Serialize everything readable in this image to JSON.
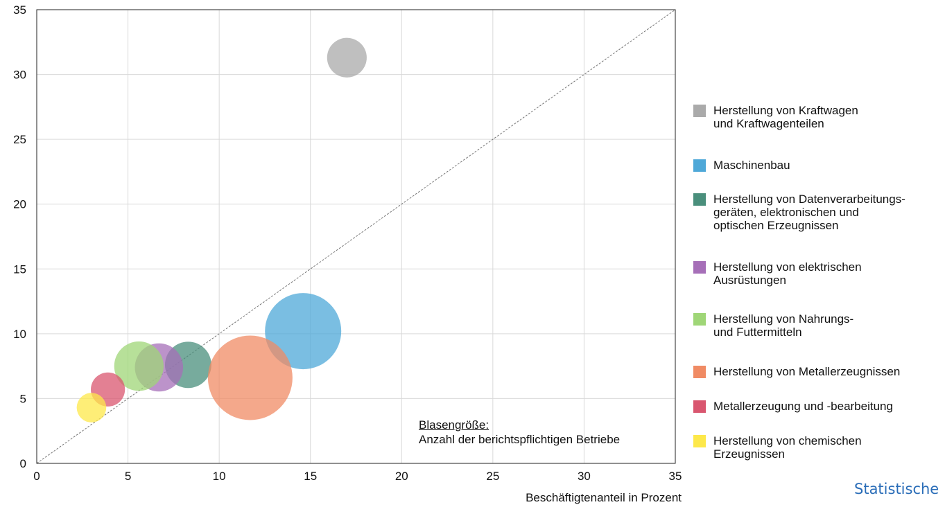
{
  "chart_data": {
    "type": "scatter",
    "subtype": "bubble",
    "xlabel": "Beschäftigtenanteil in Prozent",
    "ylabel": "",
    "xlim": [
      0,
      35
    ],
    "ylim": [
      0,
      35
    ],
    "xticks": [
      "0",
      "5",
      "10",
      "15",
      "20",
      "25",
      "30",
      "35"
    ],
    "yticks": [
      "0",
      "5",
      "10",
      "15",
      "20",
      "25",
      "30",
      "35"
    ],
    "grid": true,
    "diagonal_reference_line": true,
    "legend_position": "right",
    "size_note_title": "Blasengröße:",
    "size_note_text": "Anzahl der berichtspflichtigen Betriebe",
    "series": [
      {
        "name": "Herstellung von Kraftwagen\nund Kraftwagenteilen",
        "color": "#aaaaaa",
        "x": 17.0,
        "y": 31.3,
        "size": 0.27
      },
      {
        "name": "Maschinenbau",
        "color": "#4ea8d8",
        "x": 14.6,
        "y": 10.2,
        "size": 1.0
      },
      {
        "name": "Herstellung von Datenverarbeitungs-\ngeräten, elektronischen und\noptischen Erzeugnissen",
        "color": "#4a8f7c",
        "x": 8.3,
        "y": 7.6,
        "size": 0.37
      },
      {
        "name": "Herstellung von elektrischen\nAusrüstungen",
        "color": "#a66fb8",
        "x": 6.7,
        "y": 7.4,
        "size": 0.4
      },
      {
        "name": "Herstellung von Nahrungs-\nund Futtermitteln",
        "color": "#9fd677",
        "x": 5.6,
        "y": 7.5,
        "size": 0.42
      },
      {
        "name": "Herstellung von Metallerzeugnissen",
        "color": "#f08b64",
        "x": 11.7,
        "y": 6.6,
        "size": 1.23
      },
      {
        "name": "Metallerzeugung und -bearbeitung",
        "color": "#d9566f",
        "x": 3.9,
        "y": 5.7,
        "size": 0.2
      },
      {
        "name": "Herstellung von chemischen\nErzeugnissen",
        "color": "#fde84a",
        "x": 3.0,
        "y": 4.3,
        "size": 0.15
      }
    ]
  },
  "footer": {
    "text": "Statistische"
  }
}
